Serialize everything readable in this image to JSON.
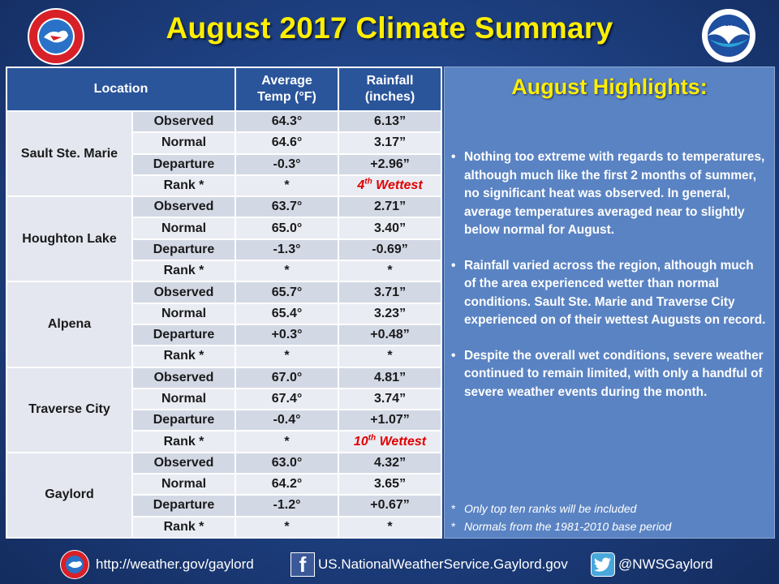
{
  "title": "August 2017 Climate Summary",
  "logos": {
    "nws": "National Weather Service seal",
    "noaa": "NOAA"
  },
  "table": {
    "headers": [
      "Location",
      "Average Temp (°F)",
      "Rainfall (inches)"
    ],
    "header_lines": {
      "location": "Location",
      "temp_1": "Average",
      "temp_2": "Temp (°F)",
      "rain_1": "Rainfall",
      "rain_2": "(inches)"
    },
    "row_labels": [
      "Observed",
      "Normal",
      "Departure",
      "Rank *"
    ],
    "locations": [
      {
        "name": "Sault Ste. Marie",
        "temp": [
          "64.3°",
          "64.6°",
          "-0.3°",
          "*"
        ],
        "rain": [
          "6.13”",
          "3.17”",
          "+2.96”",
          "4th Wettest"
        ],
        "rain_rank": {
          "num": "4",
          "sup": "th",
          "text": " Wettest"
        }
      },
      {
        "name": "Houghton Lake",
        "temp": [
          "63.7°",
          "65.0°",
          "-1.3°",
          "*"
        ],
        "rain": [
          "2.71”",
          "3.40”",
          "-0.69”",
          "*"
        ]
      },
      {
        "name": "Alpena",
        "temp": [
          "65.7°",
          "65.4°",
          "+0.3°",
          "*"
        ],
        "rain": [
          "3.71”",
          "3.23”",
          "+0.48”",
          "*"
        ]
      },
      {
        "name": "Traverse City",
        "temp": [
          "67.0°",
          "67.4°",
          "-0.4°",
          "*"
        ],
        "rain": [
          "4.81”",
          "3.74”",
          "+1.07”",
          "10th Wettest"
        ],
        "rain_rank": {
          "num": "10",
          "sup": "th",
          "text": " Wettest"
        }
      },
      {
        "name": "Gaylord",
        "temp": [
          "63.0°",
          "64.2°",
          "-1.2°",
          "*"
        ],
        "rain": [
          "4.32”",
          "3.65”",
          "+0.67”",
          "*"
        ]
      }
    ]
  },
  "highlights": {
    "title": "August Highlights:",
    "bullets": [
      "Nothing too extreme with regards to temperatures, although much like the first 2 months of summer, no significant heat was observed.  In general, average temperatures averaged near to slightly below normal for August.",
      "Rainfall varied across the region, although much of the area experienced wetter than normal conditions.  Sault Ste. Marie and Traverse City experienced on of their wettest Augusts on record.",
      "Despite the overall wet conditions, severe weather continued to remain limited, with only a handful of severe weather events during the month."
    ],
    "notes": [
      "Only top ten ranks will be included",
      "Normals from the 1981-2010 base period"
    ]
  },
  "footer": {
    "website": "http://weather.gov/gaylord",
    "facebook": "US.NationalWeatherService.Gaylord.gov",
    "twitter": "@NWSGaylord"
  },
  "colors": {
    "background": "#1d3f80",
    "title": "#ffee00",
    "table_header": "#2a559b",
    "rank_highlight": "#e00000",
    "highlights_panel": "#5a83c3"
  }
}
